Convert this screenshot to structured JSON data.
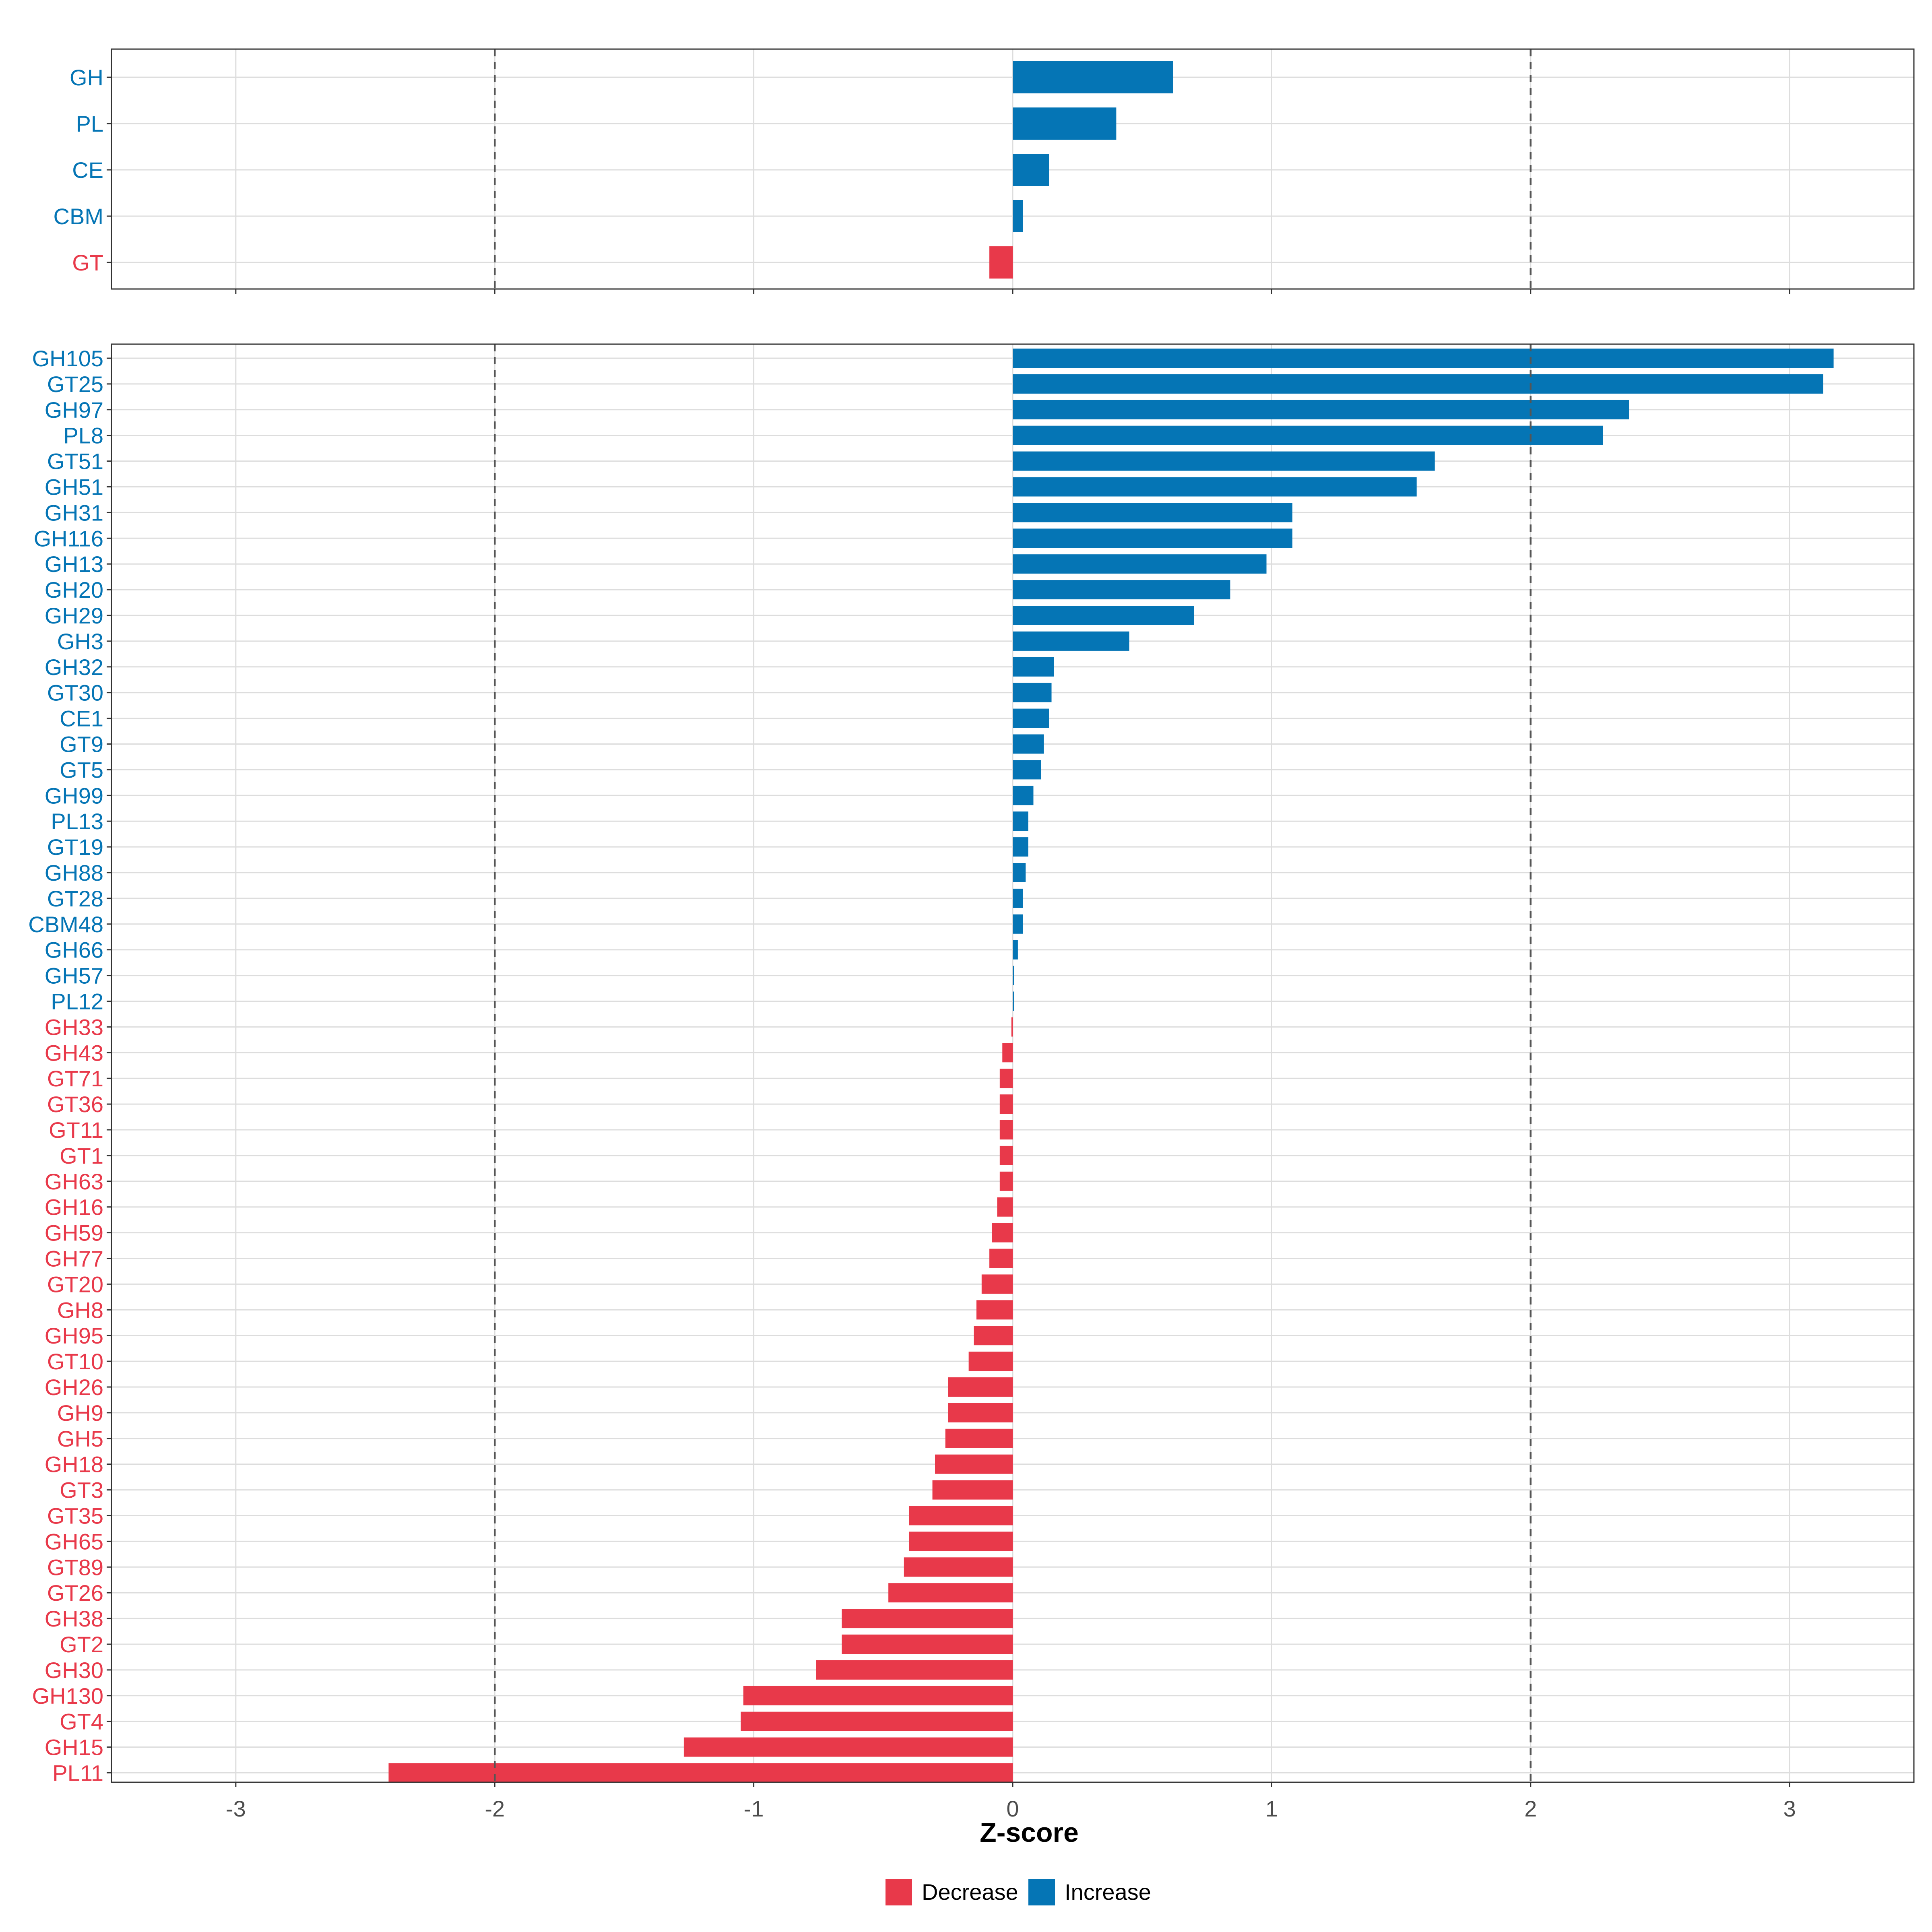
{
  "colors": {
    "decrease": "#e8394a",
    "increase": "#0575b5"
  },
  "chart_data": [
    {
      "type": "bar",
      "orientation": "horizontal",
      "panel": "top",
      "categories": [
        "GH",
        "PL",
        "CE",
        "CBM",
        "GT"
      ],
      "values": [
        0.62,
        0.4,
        0.14,
        0.04,
        -0.09
      ],
      "xlim": [
        -3.48,
        3.48
      ],
      "xticks": [
        -3,
        -2,
        -1,
        0,
        1,
        2,
        3
      ],
      "reference_lines": [
        -2,
        2
      ],
      "grid": true
    },
    {
      "type": "bar",
      "orientation": "horizontal",
      "panel": "bottom",
      "categories": [
        "GH105",
        "GT25",
        "GH97",
        "PL8",
        "GT51",
        "GH51",
        "GH31",
        "GH116",
        "GH13",
        "GH20",
        "GH29",
        "GH3",
        "GH32",
        "GT30",
        "CE1",
        "GT9",
        "GT5",
        "GH99",
        "PL13",
        "GT19",
        "GH88",
        "GT28",
        "CBM48",
        "GH66",
        "GH57",
        "PL12",
        "GH33",
        "GH43",
        "GT71",
        "GT36",
        "GT11",
        "GT1",
        "GH63",
        "GH16",
        "GH59",
        "GH77",
        "GT20",
        "GH8",
        "GH95",
        "GT10",
        "GH26",
        "GH9",
        "GH5",
        "GH18",
        "GT3",
        "GT35",
        "GH65",
        "GT89",
        "GT26",
        "GH38",
        "GT2",
        "GH30",
        "GH130",
        "GT4",
        "GH15",
        "PL11"
      ],
      "values": [
        3.17,
        3.13,
        2.38,
        2.28,
        1.63,
        1.56,
        1.08,
        1.08,
        0.98,
        0.84,
        0.7,
        0.45,
        0.16,
        0.15,
        0.14,
        0.12,
        0.11,
        0.08,
        0.06,
        0.06,
        0.05,
        0.04,
        0.04,
        0.02,
        0.005,
        0.005,
        -0.005,
        -0.04,
        -0.05,
        -0.05,
        -0.05,
        -0.05,
        -0.05,
        -0.06,
        -0.08,
        -0.09,
        -0.12,
        -0.14,
        -0.15,
        -0.17,
        -0.25,
        -0.25,
        -0.26,
        -0.3,
        -0.31,
        -0.4,
        -0.4,
        -0.42,
        -0.48,
        -0.66,
        -0.66,
        -0.76,
        -1.04,
        -1.05,
        -1.27,
        -2.41
      ],
      "xlim": [
        -3.48,
        3.48
      ],
      "xticks": [
        -3,
        -2,
        -1,
        0,
        1,
        2,
        3
      ],
      "reference_lines": [
        -2,
        2
      ],
      "grid": true
    }
  ],
  "axis": {
    "xlabel": "Z-score",
    "tick_labels": [
      "-3",
      "-2",
      "-1",
      "0",
      "1",
      "2",
      "3"
    ]
  },
  "legend": {
    "position": "bottom",
    "items": [
      {
        "label": "Decrease",
        "color": "#e8394a"
      },
      {
        "label": "Increase",
        "color": "#0575b5"
      }
    ]
  }
}
